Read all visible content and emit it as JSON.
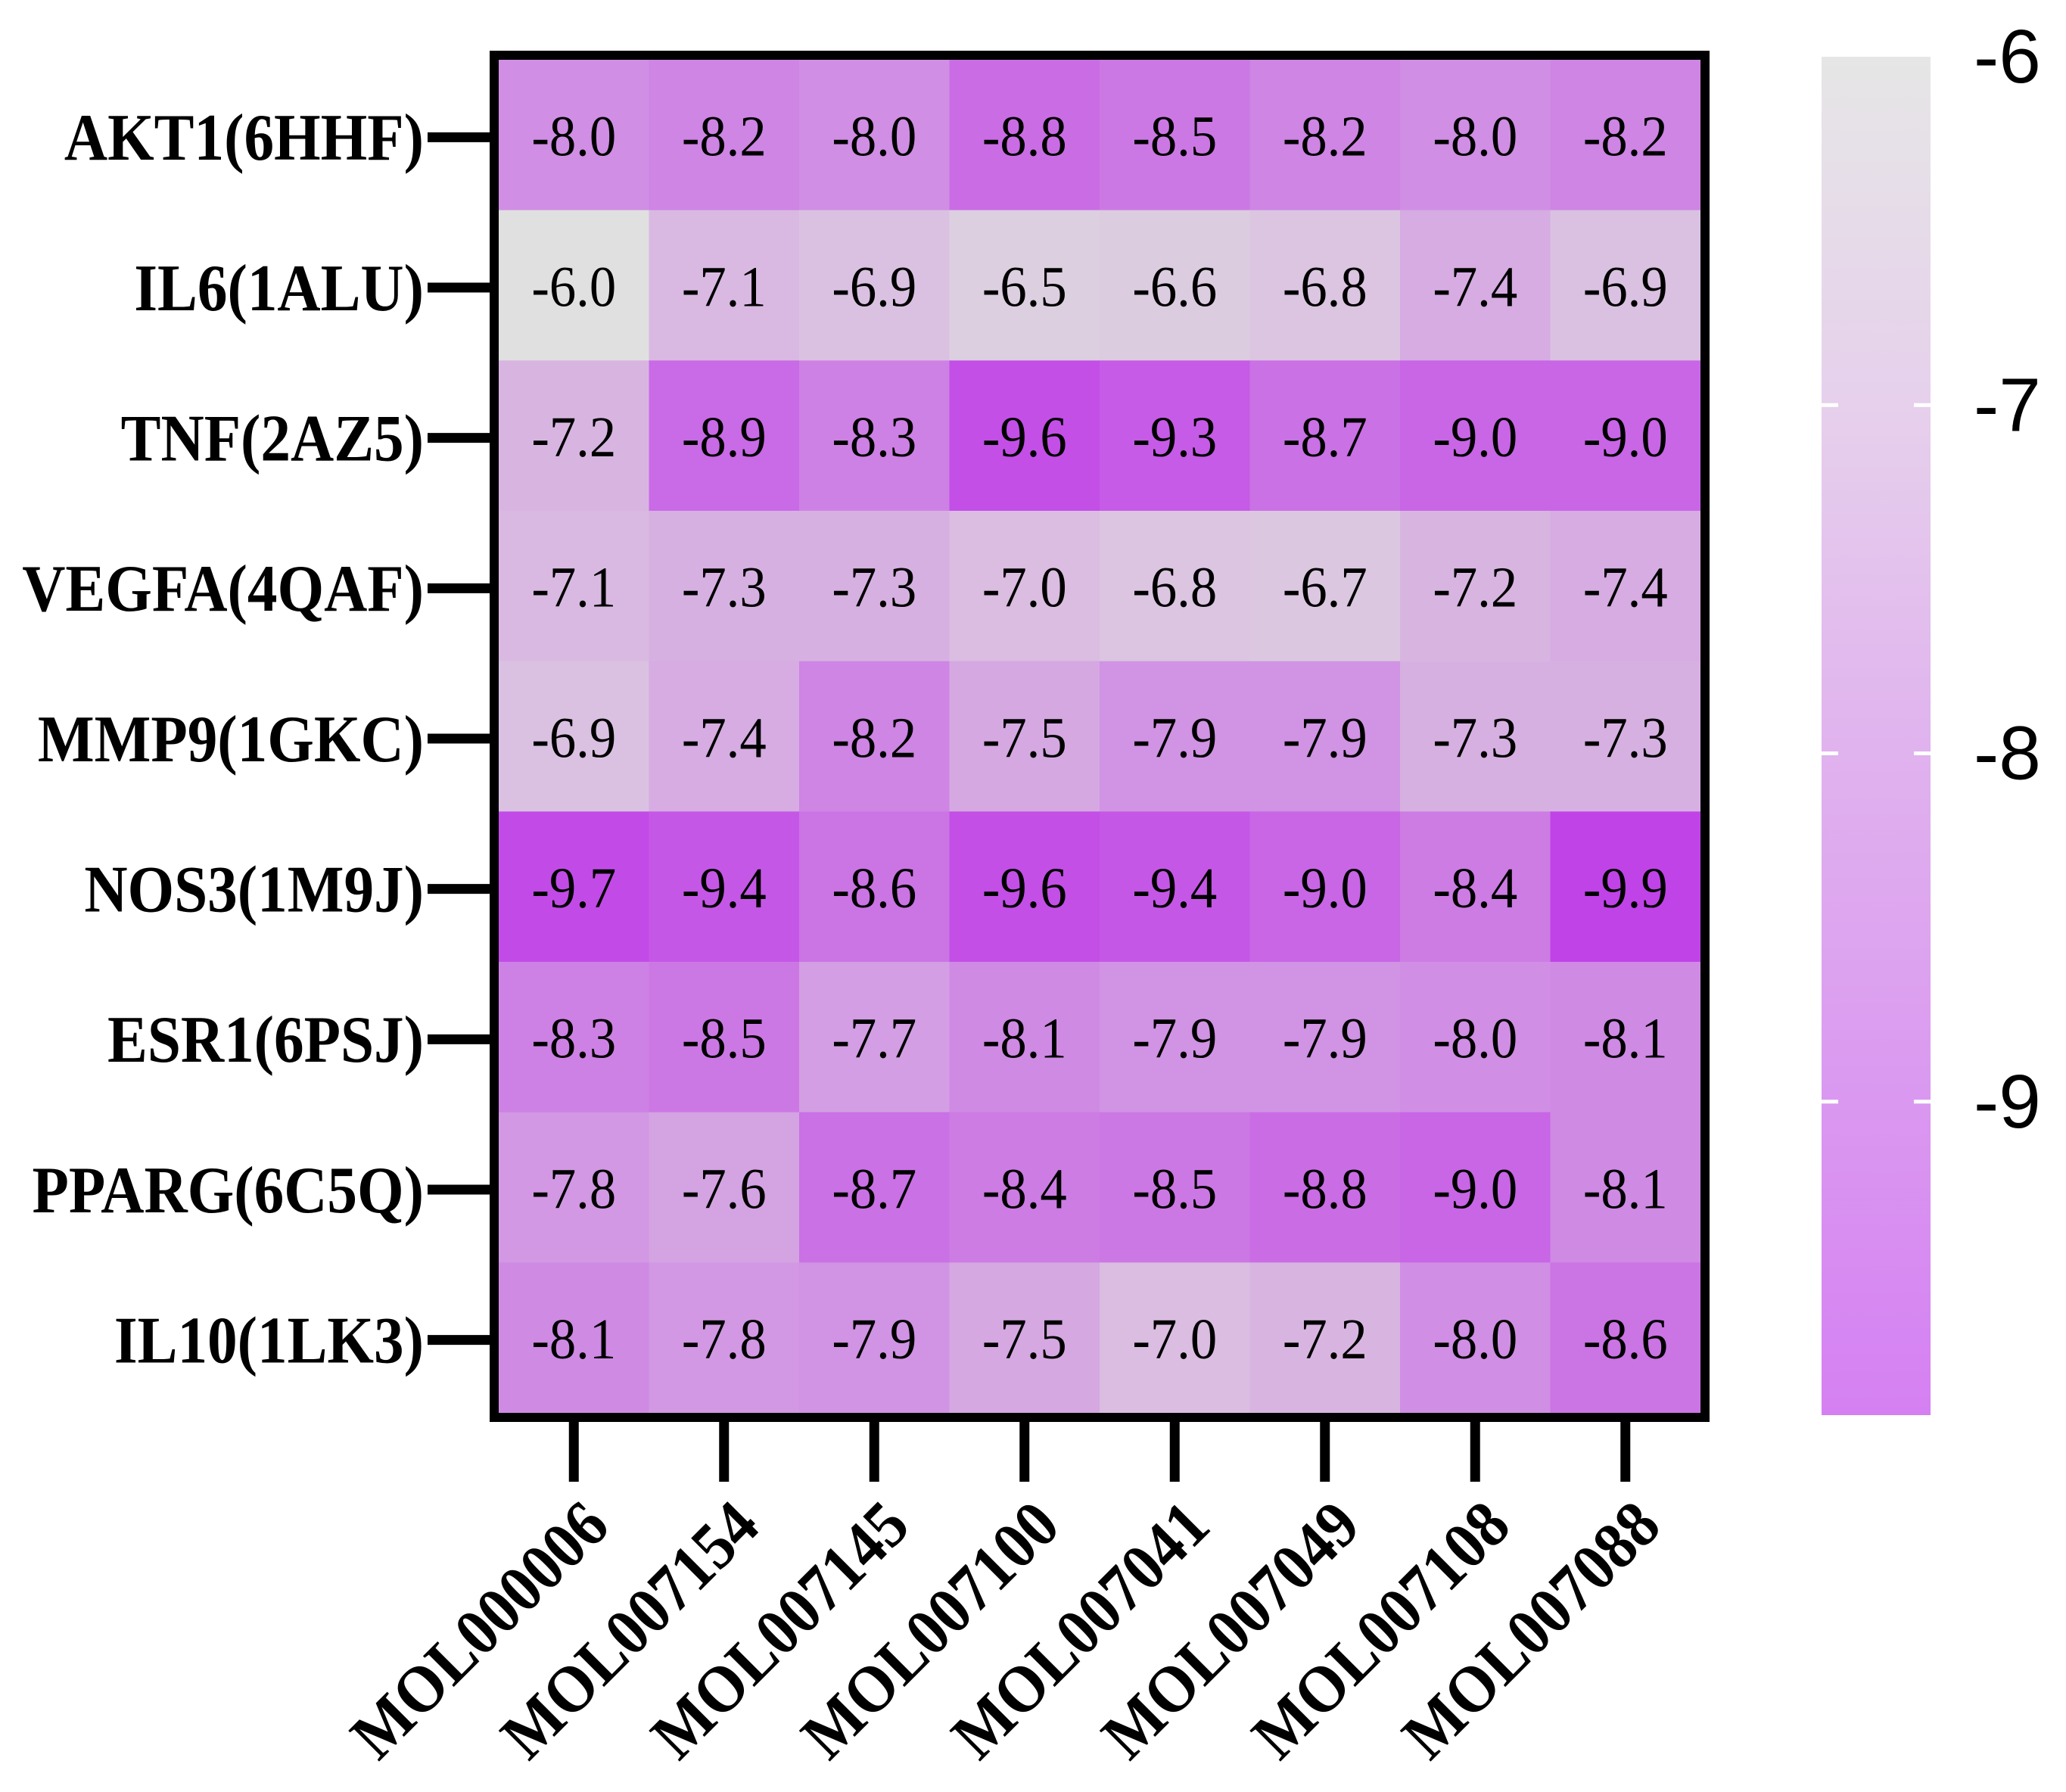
{
  "chart_data": {
    "type": "heatmap",
    "title": "",
    "xlabel": "",
    "ylabel": "",
    "rows": [
      "AKT1(6HHF)",
      "IL6(1ALU)",
      "TNF(2AZ5)",
      "VEGFA(4QAF)",
      "MMP9(1GKC)",
      "NOS3(1M9J)",
      "ESR1(6PSJ)",
      "PPARG(6C5Q)",
      "IL10(1LK3)"
    ],
    "columns": [
      "MOL000006",
      "MOL007154",
      "MOL007145",
      "MOL007100",
      "MOL007041",
      "MOL007049",
      "MOL007108",
      "MOL007088"
    ],
    "values": [
      [
        -8.0,
        -8.2,
        -8.0,
        -8.8,
        -8.5,
        -8.2,
        -8.0,
        -8.2
      ],
      [
        -6.0,
        -7.1,
        -6.9,
        -6.5,
        -6.6,
        -6.8,
        -7.4,
        -6.9
      ],
      [
        -7.2,
        -8.9,
        -8.3,
        -9.6,
        -9.3,
        -8.7,
        -9.0,
        -9.0
      ],
      [
        -7.1,
        -7.3,
        -7.3,
        -7.0,
        -6.8,
        -6.7,
        -7.2,
        -7.4
      ],
      [
        -6.9,
        -7.4,
        -8.2,
        -7.5,
        -7.9,
        -7.9,
        -7.3,
        -7.3
      ],
      [
        -9.7,
        -9.4,
        -8.6,
        -9.6,
        -9.4,
        -9.0,
        -8.4,
        -9.9
      ],
      [
        -8.3,
        -8.5,
        -7.7,
        -8.1,
        -7.9,
        -7.9,
        -8.0,
        -8.1
      ],
      [
        -7.8,
        -7.6,
        -8.7,
        -8.4,
        -8.5,
        -8.8,
        -9.0,
        -8.1
      ],
      [
        -8.1,
        -7.8,
        -7.9,
        -7.5,
        -7.0,
        -7.2,
        -8.0,
        -8.6
      ]
    ],
    "value_labels": [
      [
        "-8.0",
        "-8.2",
        "-8.0",
        "-8.8",
        "-8.5",
        "-8.2",
        "-8.0",
        "-8.2"
      ],
      [
        "-6.0",
        "-7.1",
        "-6.9",
        "-6.5",
        "-6.6",
        "-6.8",
        "-7.4",
        "-6.9"
      ],
      [
        "-7.2",
        "-8.9",
        "-8.3",
        "-9.6",
        "-9.3",
        "-8.7",
        "-9.0",
        "-9.0"
      ],
      [
        "-7.1",
        "-7.3",
        "-7.3",
        "-7.0",
        "-6.8",
        "-6.7",
        "-7.2",
        "-7.4"
      ],
      [
        "-6.9",
        "-7.4",
        "-8.2",
        "-7.5",
        "-7.9",
        "-7.9",
        "-7.3",
        "-7.3"
      ],
      [
        "-9.7",
        "-9.4",
        "-8.6",
        "-9.6",
        "-9.4",
        "-9.0",
        "-8.4",
        "-9.9"
      ],
      [
        "-8.3",
        "-8.5",
        "-7.7",
        "-8.1",
        "-7.9",
        "-7.9",
        "-8.0",
        "-8.1"
      ],
      [
        "-7.8",
        "-7.6",
        "-8.7",
        "-8.4",
        "-8.5",
        "-8.8",
        "-9.0",
        "-8.1"
      ],
      [
        "-8.1",
        "-7.8",
        "-7.9",
        "-7.5",
        "-7.0",
        "-7.2",
        "-8.0",
        "-8.6"
      ]
    ],
    "x_tick_rotation_deg": -45,
    "colorbar": {
      "range": [
        -9.9,
        -6.0
      ],
      "ticks": [
        -6,
        -7,
        -8,
        -9
      ],
      "tick_labels": [
        "-6",
        "-7",
        "-8",
        "-9"
      ],
      "placement": "right"
    },
    "cell_color_stops": [
      {
        "value": -6.0,
        "color": "#e0e0e0"
      },
      {
        "value": -6.5,
        "color": "#dcd0e0"
      },
      {
        "value": -7.0,
        "color": "#dabde1"
      },
      {
        "value": -7.5,
        "color": "#d5a8e2"
      },
      {
        "value": -8.0,
        "color": "#d08ee4"
      },
      {
        "value": -8.5,
        "color": "#cc78e4"
      },
      {
        "value": -9.0,
        "color": "#c866e6"
      },
      {
        "value": -9.5,
        "color": "#c453e7"
      },
      {
        "value": -9.9,
        "color": "#c043e8"
      }
    ],
    "colorbar_color_stops": [
      {
        "value": -6.0,
        "color": "#e6e6e6"
      },
      {
        "value": -7.0,
        "color": "#e6d0ec"
      },
      {
        "value": -8.0,
        "color": "#e0b2ee"
      },
      {
        "value": -9.0,
        "color": "#da98f0"
      },
      {
        "value": -9.9,
        "color": "#d580f2"
      }
    ],
    "grid": false
  }
}
